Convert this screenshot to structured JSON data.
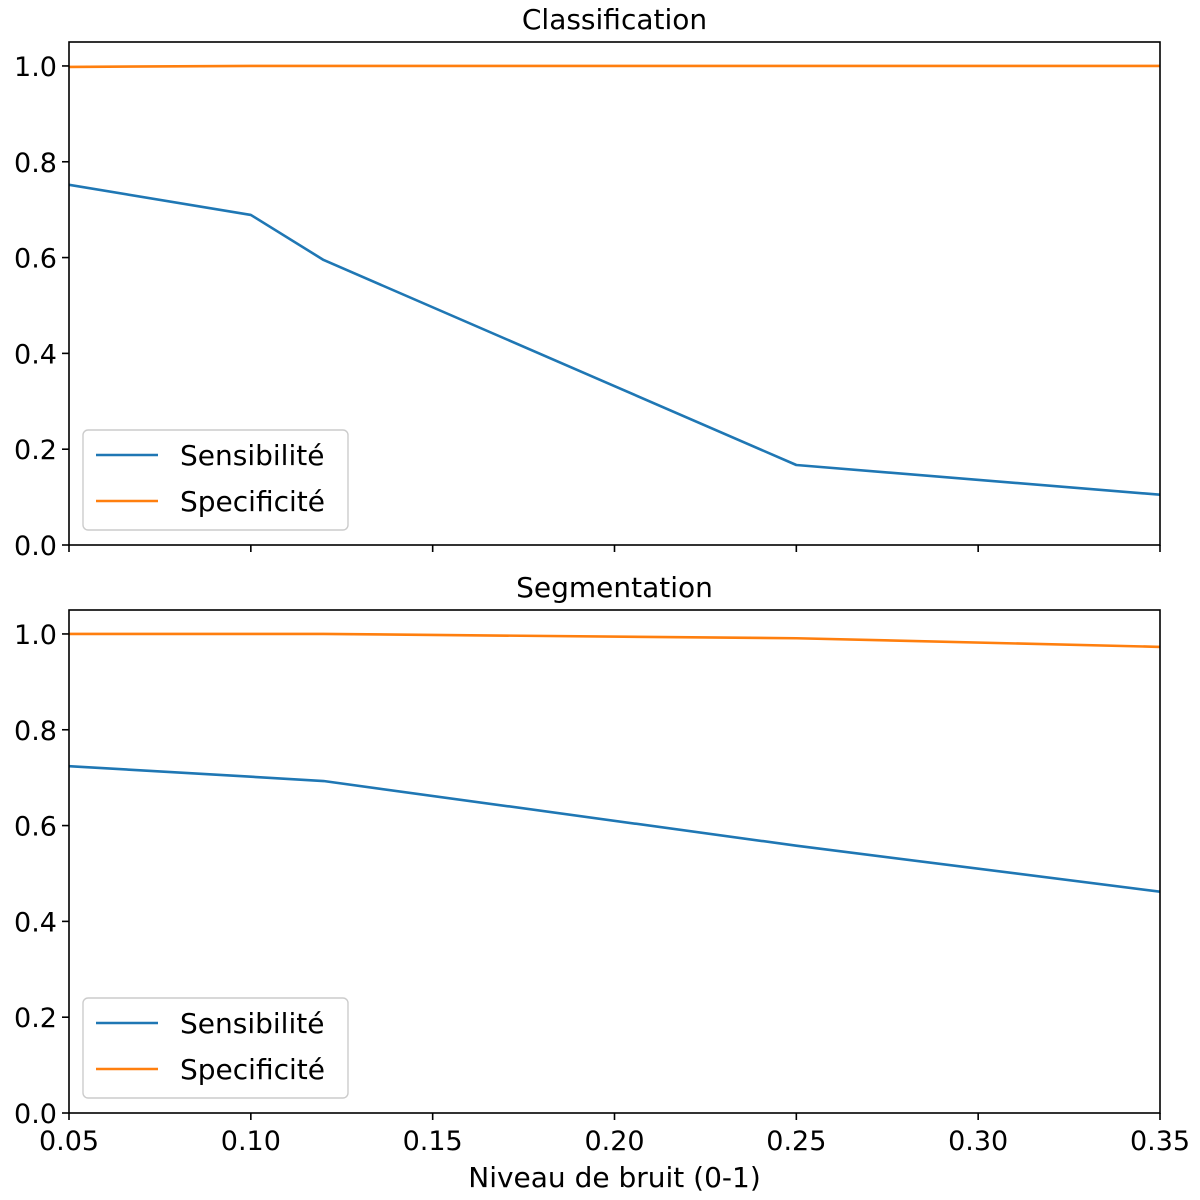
{
  "chart_data": [
    {
      "type": "line",
      "title": "Classification",
      "xlabel": "",
      "ylabel": "",
      "xlim": [
        0.05,
        0.35
      ],
      "ylim": [
        0.0,
        1.05
      ],
      "xticks": [
        0.05,
        0.1,
        0.15,
        0.2,
        0.25,
        0.3,
        0.35
      ],
      "show_xtick_labels": false,
      "yticks": [
        0.0,
        0.2,
        0.4,
        0.6,
        0.8,
        1.0
      ],
      "ytick_labels": [
        "0.0",
        "0.2",
        "0.4",
        "0.6",
        "0.8",
        "1.0"
      ],
      "legend": "lower-left",
      "grid": false,
      "x": [
        0.05,
        0.1,
        0.12,
        0.25,
        0.35
      ],
      "series": [
        {
          "name": "Sensibilité",
          "color": "#1f77b4",
          "values": [
            0.752,
            0.689,
            0.595,
            0.167,
            0.105
          ]
        },
        {
          "name": "Specificité",
          "color": "#ff7f0e",
          "values": [
            0.998,
            1.0,
            1.0,
            1.0,
            1.0
          ]
        }
      ]
    },
    {
      "type": "line",
      "title": "Segmentation",
      "xlabel": "Niveau de bruit (0-1)",
      "ylabel": "",
      "xlim": [
        0.05,
        0.35
      ],
      "ylim": [
        0.0,
        1.05
      ],
      "xticks": [
        0.05,
        0.1,
        0.15,
        0.2,
        0.25,
        0.3,
        0.35
      ],
      "xtick_labels": [
        "0.05",
        "0.10",
        "0.15",
        "0.20",
        "0.25",
        "0.30",
        "0.35"
      ],
      "show_xtick_labels": true,
      "yticks": [
        0.0,
        0.2,
        0.4,
        0.6,
        0.8,
        1.0
      ],
      "ytick_labels": [
        "0.0",
        "0.2",
        "0.4",
        "0.6",
        "0.8",
        "1.0"
      ],
      "legend": "lower-left",
      "grid": false,
      "x": [
        0.05,
        0.1,
        0.12,
        0.25,
        0.35
      ],
      "series": [
        {
          "name": "Sensibilité",
          "color": "#1f77b4",
          "values": [
            0.724,
            0.702,
            0.693,
            0.558,
            0.462
          ]
        },
        {
          "name": "Specificité",
          "color": "#ff7f0e",
          "values": [
            1.0,
            1.0,
            1.0,
            0.991,
            0.973
          ]
        }
      ]
    }
  ]
}
